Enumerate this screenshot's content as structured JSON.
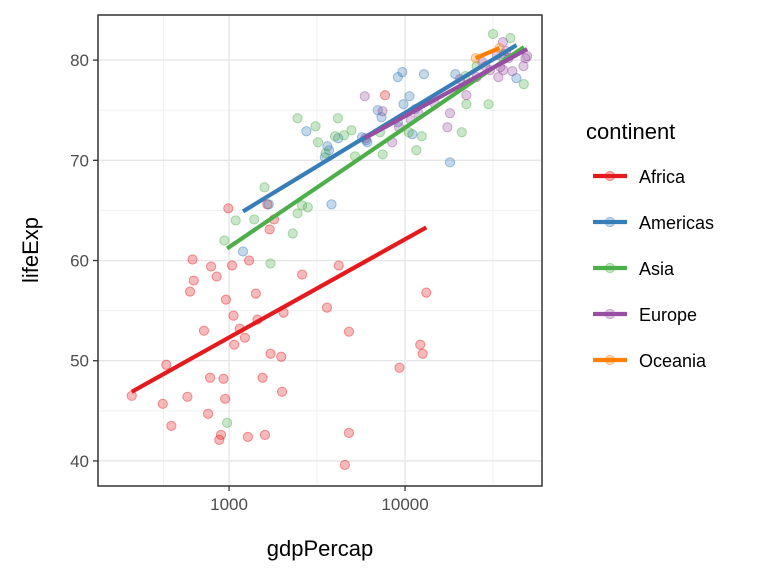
{
  "chart_data": {
    "type": "scatter",
    "title": "",
    "xlabel": "gdpPercap",
    "ylabel": "lifeExp",
    "x_scale": "log10",
    "xlim": [
      180,
      60000
    ],
    "ylim": [
      37.5,
      84.5
    ],
    "x_ticks": [
      1000,
      10000
    ],
    "x_tick_labels": [
      "1000",
      "10000"
    ],
    "y_ticks": [
      40,
      50,
      60,
      70,
      80
    ],
    "y_tick_labels": [
      "40",
      "50",
      "60",
      "70",
      "80"
    ],
    "grid": true,
    "legend": {
      "title": "continent",
      "position": "right"
    },
    "series": [
      {
        "name": "Africa",
        "color": "#E41A1C",
        "points": [
          [
            280,
            46.5
          ],
          [
            420,
            45.7
          ],
          [
            470,
            43.5
          ],
          [
            580,
            46.4
          ],
          [
            760,
            44.7
          ],
          [
            880,
            42.1
          ],
          [
            900,
            42.6
          ],
          [
            950,
            46.2
          ],
          [
            1280,
            42.4
          ],
          [
            1600,
            42.6
          ],
          [
            4550,
            39.6
          ],
          [
            4800,
            42.8
          ],
          [
            440,
            49.6
          ],
          [
            600,
            56.9
          ],
          [
            630,
            58.0
          ],
          [
            720,
            53.0
          ],
          [
            780,
            48.3
          ],
          [
            850,
            58.4
          ],
          [
            930,
            48.2
          ],
          [
            960,
            56.1
          ],
          [
            990,
            65.2
          ],
          [
            1040,
            59.5
          ],
          [
            1060,
            54.5
          ],
          [
            1070,
            51.6
          ],
          [
            1150,
            53.2
          ],
          [
            1230,
            52.3
          ],
          [
            1300,
            60.0
          ],
          [
            1450,
            54.1
          ],
          [
            1420,
            56.7
          ],
          [
            1550,
            48.3
          ],
          [
            1650,
            65.6
          ],
          [
            1720,
            50.7
          ],
          [
            1700,
            63.1
          ],
          [
            1800,
            64.1
          ],
          [
            1980,
            50.4
          ],
          [
            2040,
            54.8
          ],
          [
            2000,
            46.9
          ],
          [
            2600,
            58.6
          ],
          [
            3600,
            55.3
          ],
          [
            4800,
            52.9
          ],
          [
            9300,
            49.3
          ],
          [
            12200,
            51.6
          ],
          [
            12600,
            50.7
          ],
          [
            13200,
            56.8
          ],
          [
            7700,
            76.5
          ],
          [
            4200,
            59.5
          ],
          [
            620,
            60.1
          ],
          [
            790,
            59.4
          ]
        ],
        "fit": [
          [
            280,
            46.9
          ],
          [
            13200,
            63.3
          ]
        ]
      },
      {
        "name": "Americas",
        "color": "#377EB8",
        "points": [
          [
            1200,
            60.9
          ],
          [
            1680,
            65.6
          ],
          [
            3820,
            65.6
          ],
          [
            2750,
            72.9
          ],
          [
            3500,
            70.3
          ],
          [
            3620,
            71.4
          ],
          [
            3700,
            71.0
          ],
          [
            4170,
            72.2
          ],
          [
            5700,
            72.3
          ],
          [
            6000,
            72.0
          ],
          [
            6100,
            71.8
          ],
          [
            7000,
            75.0
          ],
          [
            7350,
            74.3
          ],
          [
            9100,
            78.3
          ],
          [
            9650,
            78.8
          ],
          [
            9800,
            75.6
          ],
          [
            9100,
            73.8
          ],
          [
            10600,
            76.4
          ],
          [
            11400,
            75.1
          ],
          [
            11000,
            72.6
          ],
          [
            12800,
            78.6
          ],
          [
            18000,
            69.8
          ],
          [
            19300,
            78.6
          ],
          [
            36300,
            80.6
          ],
          [
            42900,
            78.2
          ]
        ],
        "fit": [
          [
            1200,
            64.9
          ],
          [
            43000,
            81.5
          ]
        ]
      },
      {
        "name": "Asia",
        "color": "#4DAF4A",
        "points": [
          [
            975,
            43.8
          ],
          [
            940,
            62.0
          ],
          [
            1090,
            64.0
          ],
          [
            1390,
            64.1
          ],
          [
            1590,
            67.3
          ],
          [
            1720,
            59.7
          ],
          [
            2300,
            62.7
          ],
          [
            2450,
            74.2
          ],
          [
            2450,
            64.7
          ],
          [
            2600,
            65.5
          ],
          [
            2800,
            65.3
          ],
          [
            3100,
            73.4
          ],
          [
            3200,
            71.8
          ],
          [
            3540,
            70.7
          ],
          [
            4000,
            72.4
          ],
          [
            4150,
            74.2
          ],
          [
            4500,
            72.5
          ],
          [
            4960,
            73.0
          ],
          [
            5200,
            70.4
          ],
          [
            7460,
            70.6
          ],
          [
            7200,
            72.8
          ],
          [
            10500,
            72.8
          ],
          [
            11600,
            71.0
          ],
          [
            12450,
            72.4
          ],
          [
            21000,
            72.8
          ],
          [
            22300,
            75.6
          ],
          [
            22000,
            78.4
          ],
          [
            25500,
            79.4
          ],
          [
            29800,
            75.6
          ],
          [
            31600,
            82.6
          ],
          [
            36300,
            80.1
          ],
          [
            39700,
            82.2
          ],
          [
            47300,
            77.6
          ]
        ],
        "fit": [
          [
            975,
            61.2
          ],
          [
            47300,
            81.3
          ]
        ]
      },
      {
        "name": "Europe",
        "color": "#984EA3",
        "points": [
          [
            5900,
            76.4
          ],
          [
            5950,
            72.2
          ],
          [
            7450,
            74.9
          ],
          [
            8450,
            71.8
          ],
          [
            9250,
            73.3
          ],
          [
            10800,
            74.0
          ],
          [
            11900,
            74.7
          ],
          [
            14800,
            75.6
          ],
          [
            17400,
            73.3
          ],
          [
            18000,
            74.7
          ],
          [
            20500,
            78.1
          ],
          [
            22300,
            76.5
          ],
          [
            25500,
            78.3
          ],
          [
            27500,
            79.8
          ],
          [
            28600,
            79.4
          ],
          [
            30400,
            79.0
          ],
          [
            33200,
            80.5
          ],
          [
            33900,
            78.3
          ],
          [
            34800,
            79.3
          ],
          [
            36000,
            81.8
          ],
          [
            36100,
            79.0
          ],
          [
            37500,
            80.9
          ],
          [
            38700,
            80.2
          ],
          [
            40700,
            78.9
          ],
          [
            47100,
            79.4
          ],
          [
            48300,
            80.2
          ],
          [
            49400,
            80.4
          ]
        ],
        "fit": [
          [
            5900,
            72.2
          ],
          [
            49400,
            81.1
          ]
        ]
      },
      {
        "name": "Oceania",
        "color": "#FF7F00",
        "points": [
          [
            25200,
            80.2
          ],
          [
            34400,
            81.2
          ]
        ],
        "fit": [
          [
            25200,
            80.2
          ],
          [
            34400,
            81.2
          ]
        ]
      }
    ]
  }
}
